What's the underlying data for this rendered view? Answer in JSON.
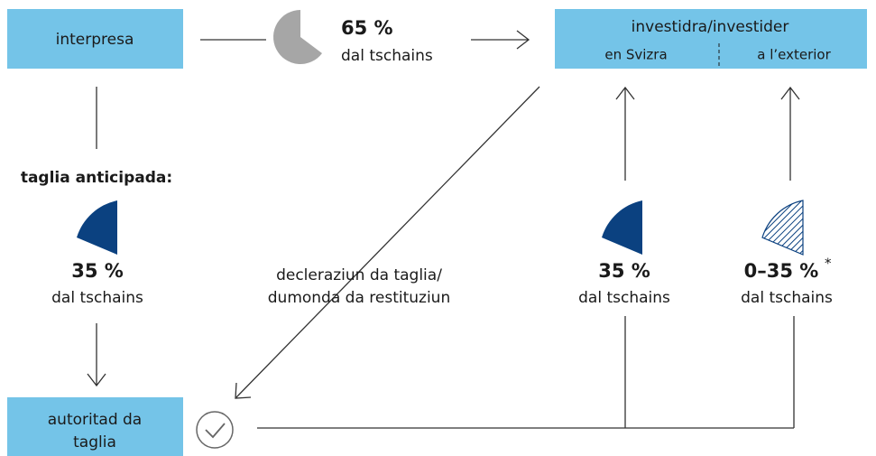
{
  "company": "interpresa",
  "investor": {
    "title": "investidra/investider",
    "domestic": "en Svizra",
    "foreign": "a l’exterior"
  },
  "authority": [
    "autoritad da",
    "taglia"
  ],
  "dividend": {
    "share": "65 %",
    "label": "dal tschains"
  },
  "withholding": {
    "title": "taglia anticipada:",
    "share": "35 %",
    "label": "dal tschains"
  },
  "declaration": [
    "decleraziun da taglia/",
    "dumonda da restituziun"
  ],
  "domestic_refund": {
    "share": "35 %",
    "label": "dal tschains"
  },
  "foreign_refund": {
    "share": "0–35 %",
    "footnote": "*",
    "label": "dal tschains"
  }
}
